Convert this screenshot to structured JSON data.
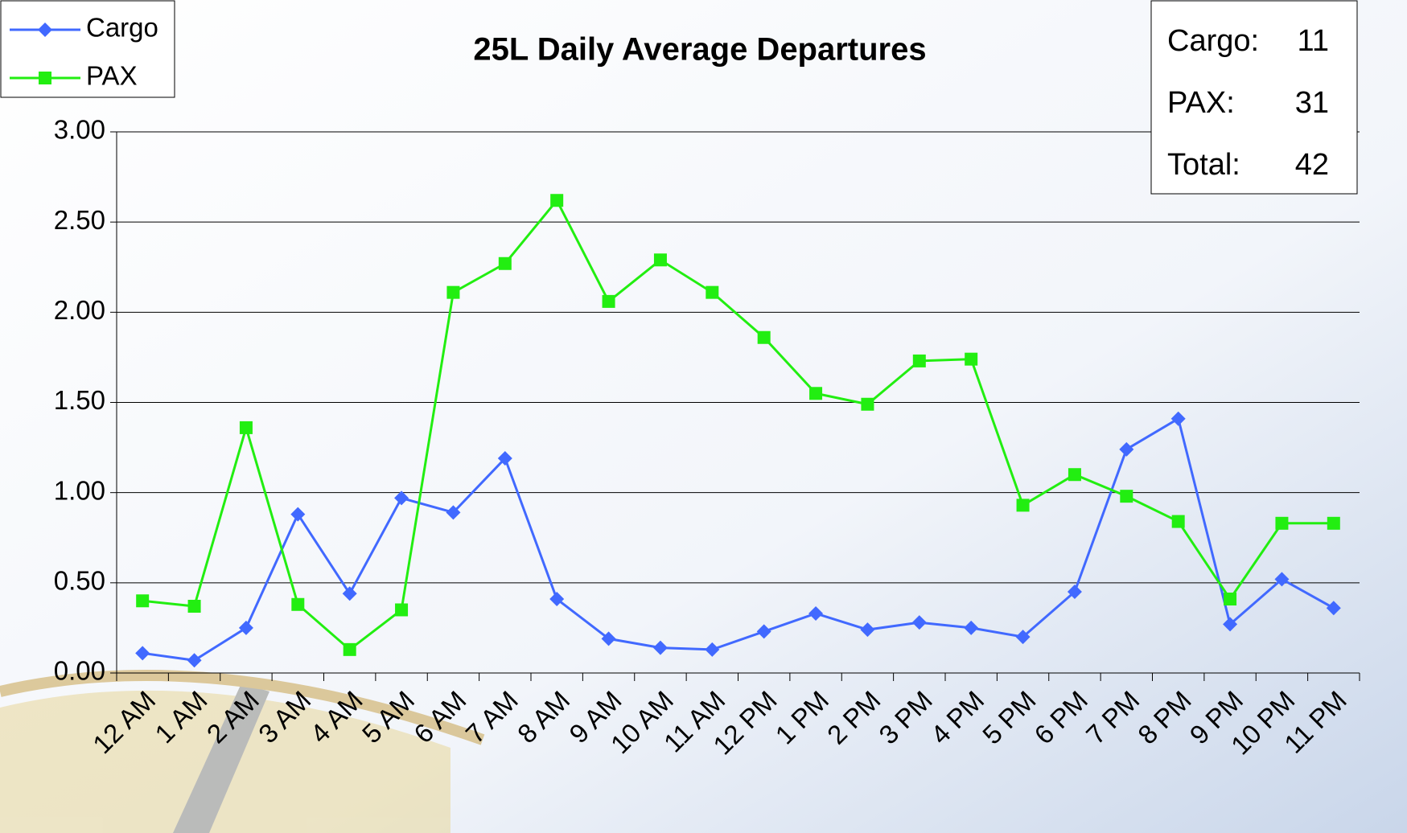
{
  "chart_data": {
    "type": "line",
    "title": "25L Daily Average Departures",
    "categories": [
      "12 AM",
      "1 AM",
      "2 AM",
      "3 AM",
      "4 AM",
      "5 AM",
      "6 AM",
      "7 AM",
      "8 AM",
      "9 AM",
      "10 AM",
      "11 AM",
      "12 PM",
      "1 PM",
      "2 PM",
      "3 PM",
      "4 PM",
      "5 PM",
      "6 PM",
      "7 PM",
      "8 PM",
      "9 PM",
      "10 PM",
      "11 PM"
    ],
    "series": [
      {
        "name": "Cargo",
        "color": "#4169ff",
        "marker": "diamond",
        "values": [
          0.11,
          0.07,
          0.25,
          0.88,
          0.44,
          0.97,
          0.89,
          1.19,
          0.41,
          0.19,
          0.14,
          0.13,
          0.23,
          0.33,
          0.24,
          0.28,
          0.25,
          0.2,
          0.45,
          1.24,
          1.41,
          0.27,
          0.52,
          0.36
        ]
      },
      {
        "name": "PAX",
        "color": "#22ee11",
        "marker": "square",
        "values": [
          0.4,
          0.37,
          1.36,
          0.38,
          0.13,
          0.35,
          2.11,
          2.27,
          2.62,
          2.06,
          2.29,
          2.11,
          1.86,
          1.55,
          1.49,
          1.73,
          1.74,
          0.93,
          1.1,
          0.98,
          0.84,
          0.41,
          0.83,
          0.83
        ]
      }
    ],
    "ylim": [
      0,
      3
    ],
    "yticks": [
      {
        "value": 0,
        "label": "0.00"
      },
      {
        "value": 0.5,
        "label": "0.50"
      },
      {
        "value": 1,
        "label": "1.00"
      },
      {
        "value": 1.5,
        "label": "1.50"
      },
      {
        "value": 2,
        "label": "2.00"
      },
      {
        "value": 2.5,
        "label": "2.50"
      },
      {
        "value": 3,
        "label": "3.00"
      }
    ],
    "grid": true,
    "legend": "top-left",
    "summary": [
      {
        "label": "Cargo:",
        "value": 11
      },
      {
        "label": "PAX:",
        "value": 31
      },
      {
        "label": "Total:",
        "value": 42
      }
    ]
  }
}
